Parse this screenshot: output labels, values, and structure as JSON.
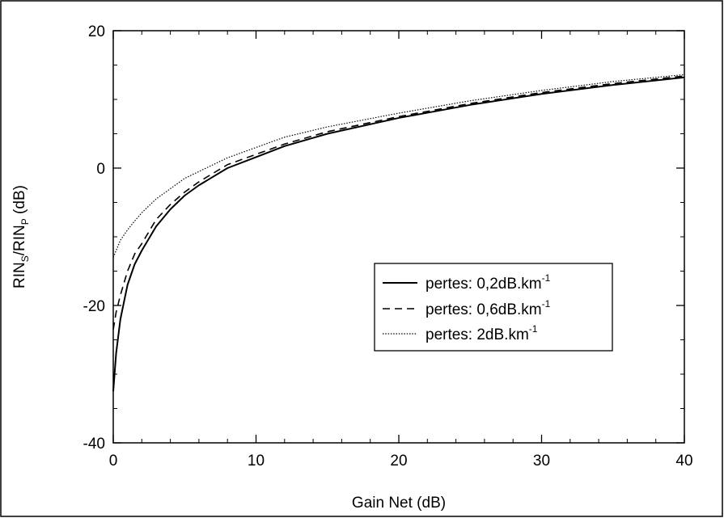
{
  "chart_data": {
    "type": "line",
    "xlabel": "Gain Net (dB)",
    "ylabel": {
      "parts": [
        "RIN",
        "S",
        "/RIN",
        "P",
        " (dB)"
      ]
    },
    "xlim": [
      0,
      40
    ],
    "ylim": [
      -40,
      20
    ],
    "xticks": [
      {
        "value": 0,
        "label": "0"
      },
      {
        "value": 10,
        "label": "10"
      },
      {
        "value": 20,
        "label": "20"
      },
      {
        "value": 30,
        "label": "30"
      },
      {
        "value": 40,
        "label": "40"
      }
    ],
    "yticks": [
      {
        "value": -40,
        "label": "-40"
      },
      {
        "value": -20,
        "label": "-20"
      },
      {
        "value": 0,
        "label": "0"
      },
      {
        "value": 20,
        "label": "20"
      }
    ],
    "grid": false,
    "legend_position": "center-right",
    "series": [
      {
        "name": "pertes: 0,2dB.km",
        "name_sup": "-1",
        "style": "solid",
        "x": [
          0,
          0.2,
          0.5,
          1,
          1.5,
          2,
          3,
          4,
          5,
          6,
          8,
          10,
          12,
          15,
          20,
          25,
          30,
          35,
          40
        ],
        "y": [
          -32.5,
          -27,
          -22,
          -17,
          -14,
          -12,
          -8.5,
          -6,
          -4,
          -2.5,
          0,
          1.6,
          3.2,
          5,
          7.3,
          9.2,
          10.8,
          12.1,
          13.2
        ]
      },
      {
        "name": "pertes: 0,6dB.km",
        "name_sup": "-1",
        "style": "dashed",
        "x": [
          0,
          0.2,
          0.5,
          1,
          1.5,
          2,
          3,
          4,
          5,
          6,
          8,
          10,
          12,
          15,
          20,
          25,
          30,
          35,
          40
        ],
        "y": [
          -23.5,
          -21,
          -18.5,
          -15,
          -12.5,
          -11,
          -7.5,
          -5.3,
          -3.5,
          -2,
          0.5,
          2,
          3.5,
          5.3,
          7.5,
          9.4,
          11,
          12.3,
          13.4
        ]
      },
      {
        "name": "pertes: 2dB.km",
        "name_sup": "-1",
        "style": "dotted",
        "x": [
          0,
          0.2,
          0.5,
          1,
          1.5,
          2,
          3,
          4,
          5,
          6,
          8,
          10,
          12,
          15,
          20,
          25,
          30,
          35,
          40
        ],
        "y": [
          -13,
          -12,
          -10.5,
          -9,
          -7.7,
          -6.5,
          -4.5,
          -3,
          -1.5,
          -0.5,
          1.5,
          3,
          4.5,
          6,
          8,
          9.8,
          11.3,
          12.6,
          13.6
        ]
      }
    ]
  }
}
